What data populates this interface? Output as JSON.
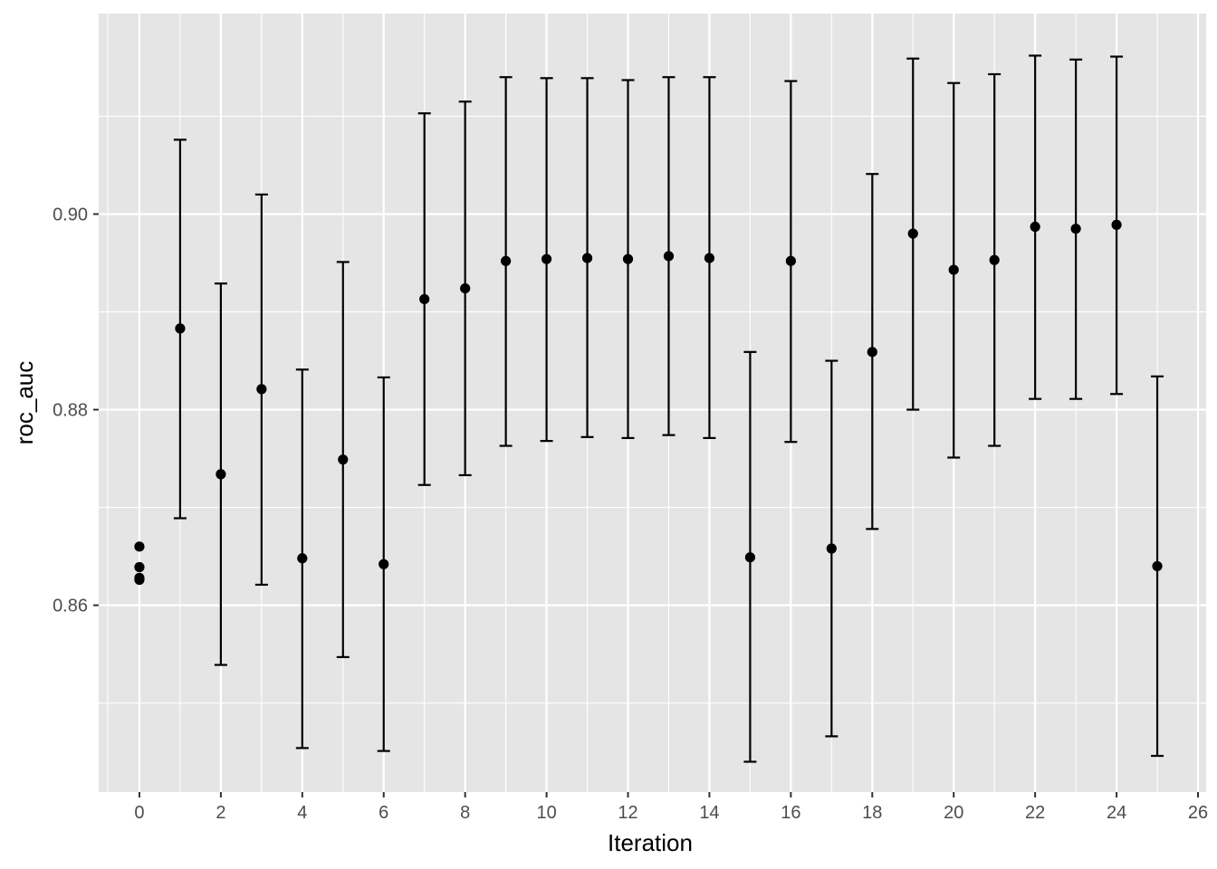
{
  "chart_data": {
    "type": "scatter",
    "title": "",
    "xlabel": "Iteration",
    "ylabel": "roc_auc",
    "xlim": [
      -1,
      26.2
    ],
    "ylim": [
      0.8409,
      0.9205
    ],
    "x_ticks": [
      0,
      2,
      4,
      6,
      8,
      10,
      12,
      14,
      16,
      18,
      20,
      22,
      24,
      26
    ],
    "y_ticks": [
      0.86,
      0.88,
      0.9
    ],
    "y_tick_labels": [
      "0.86",
      "0.88",
      "0.90"
    ],
    "y_minor_ticks": [
      0.85,
      0.87,
      0.89,
      0.91
    ],
    "grid": true,
    "legend": "none",
    "colors": {
      "panel": "#E5E5E5",
      "grid": "#FFFFFF",
      "marks": "#000000",
      "tick_text": "#4D4D4D"
    },
    "initial_points": [
      {
        "x": 0,
        "y": 0.866
      },
      {
        "x": 0,
        "y": 0.8639
      },
      {
        "x": 0,
        "y": 0.8628
      },
      {
        "x": 0,
        "y": 0.8626
      }
    ],
    "points": [
      {
        "x": 1,
        "y": 0.8883,
        "lower": 0.8689,
        "upper": 0.9076
      },
      {
        "x": 2,
        "y": 0.8734,
        "lower": 0.8539,
        "upper": 0.8929
      },
      {
        "x": 3,
        "y": 0.8821,
        "lower": 0.8621,
        "upper": 0.902
      },
      {
        "x": 4,
        "y": 0.8648,
        "lower": 0.8454,
        "upper": 0.8841
      },
      {
        "x": 5,
        "y": 0.8749,
        "lower": 0.8547,
        "upper": 0.8951
      },
      {
        "x": 6,
        "y": 0.8642,
        "lower": 0.8451,
        "upper": 0.8833
      },
      {
        "x": 7,
        "y": 0.8913,
        "lower": 0.8723,
        "upper": 0.9103
      },
      {
        "x": 8,
        "y": 0.8924,
        "lower": 0.8733,
        "upper": 0.9115
      },
      {
        "x": 9,
        "y": 0.8952,
        "lower": 0.8763,
        "upper": 0.914
      },
      {
        "x": 10,
        "y": 0.8954,
        "lower": 0.8768,
        "upper": 0.9139
      },
      {
        "x": 11,
        "y": 0.8955,
        "lower": 0.8772,
        "upper": 0.9139
      },
      {
        "x": 12,
        "y": 0.8954,
        "lower": 0.8771,
        "upper": 0.9137
      },
      {
        "x": 13,
        "y": 0.8957,
        "lower": 0.8774,
        "upper": 0.914
      },
      {
        "x": 14,
        "y": 0.8955,
        "lower": 0.8771,
        "upper": 0.914
      },
      {
        "x": 15,
        "y": 0.8649,
        "lower": 0.844,
        "upper": 0.8859
      },
      {
        "x": 16,
        "y": 0.8952,
        "lower": 0.8767,
        "upper": 0.9136
      },
      {
        "x": 17,
        "y": 0.8658,
        "lower": 0.8466,
        "upper": 0.885
      },
      {
        "x": 18,
        "y": 0.8859,
        "lower": 0.8678,
        "upper": 0.9041
      },
      {
        "x": 19,
        "y": 0.898,
        "lower": 0.88,
        "upper": 0.9159
      },
      {
        "x": 20,
        "y": 0.8943,
        "lower": 0.8751,
        "upper": 0.9134
      },
      {
        "x": 21,
        "y": 0.8953,
        "lower": 0.8763,
        "upper": 0.9143
      },
      {
        "x": 22,
        "y": 0.8987,
        "lower": 0.8811,
        "upper": 0.9162
      },
      {
        "x": 23,
        "y": 0.8985,
        "lower": 0.8811,
        "upper": 0.9158
      },
      {
        "x": 24,
        "y": 0.8989,
        "lower": 0.8816,
        "upper": 0.9161
      },
      {
        "x": 25,
        "y": 0.864,
        "lower": 0.8446,
        "upper": 0.8834
      }
    ]
  }
}
